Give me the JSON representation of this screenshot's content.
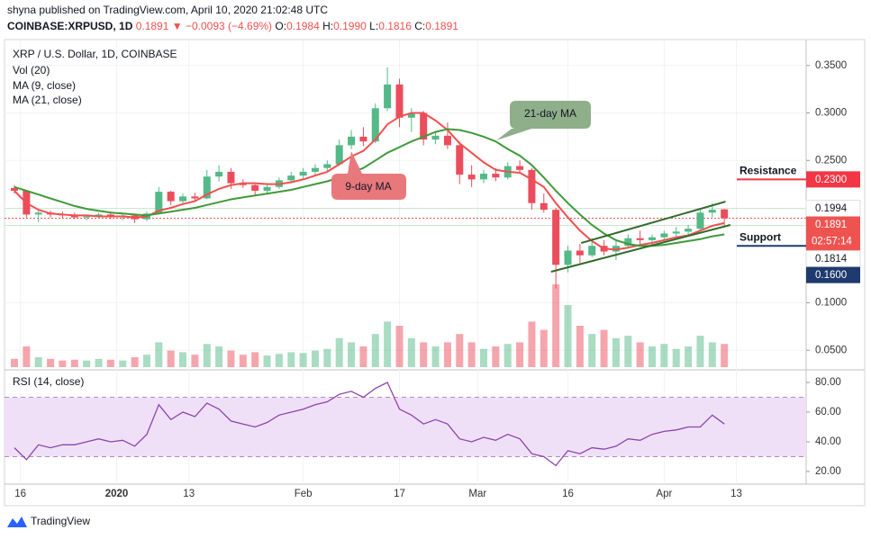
{
  "header": {
    "byline": "shyna published on TradingView.com, April 10, 2020 21:02:48 UTC",
    "symbol": "COINBASE:XRPUSD, 1D",
    "last": "0.1891",
    "arrow": "▼",
    "change": "−0.0093 (−4.69%)",
    "quote": [
      {
        "k": "O:",
        "v": "0.1984"
      },
      {
        "k": "H:",
        "v": "0.1990"
      },
      {
        "k": "L:",
        "v": "0.1816"
      },
      {
        "k": "C:",
        "v": "0.1891"
      }
    ]
  },
  "chart_data": {
    "type": "candlestick",
    "title": "XRP / U.S. Dollar, 1D, COINBASE",
    "up_color": "#53b987",
    "down_color": "#eb4d5c",
    "candles": {
      "open": [
        0.221,
        0.218,
        0.193,
        0.195,
        0.193,
        0.192,
        0.19,
        0.191,
        0.193,
        0.191,
        0.192,
        0.188,
        0.194,
        0.217,
        0.207,
        0.212,
        0.21,
        0.233,
        0.238,
        0.226,
        0.224,
        0.218,
        0.222,
        0.229,
        0.234,
        0.238,
        0.242,
        0.246,
        0.266,
        0.275,
        0.27,
        0.305,
        0.33,
        0.295,
        0.3,
        0.272,
        0.276,
        0.266,
        0.235,
        0.23,
        0.236,
        0.232,
        0.244,
        0.24,
        0.205,
        0.198,
        0.14,
        0.155,
        0.15,
        0.16,
        0.154,
        0.16,
        0.168,
        0.166,
        0.169,
        0.173,
        0.175,
        0.178,
        0.195,
        0.1984
      ],
      "high": [
        0.224,
        0.219,
        0.198,
        0.197,
        0.196,
        0.195,
        0.193,
        0.195,
        0.196,
        0.194,
        0.194,
        0.196,
        0.222,
        0.218,
        0.215,
        0.216,
        0.24,
        0.245,
        0.242,
        0.23,
        0.226,
        0.224,
        0.232,
        0.238,
        0.242,
        0.246,
        0.25,
        0.272,
        0.282,
        0.285,
        0.31,
        0.348,
        0.336,
        0.305,
        0.302,
        0.28,
        0.29,
        0.27,
        0.245,
        0.24,
        0.242,
        0.248,
        0.25,
        0.242,
        0.215,
        0.2,
        0.16,
        0.162,
        0.168,
        0.166,
        0.165,
        0.172,
        0.176,
        0.172,
        0.176,
        0.18,
        0.182,
        0.199,
        0.205,
        0.199
      ],
      "low": [
        0.215,
        0.19,
        0.185,
        0.19,
        0.189,
        0.188,
        0.187,
        0.189,
        0.188,
        0.187,
        0.184,
        0.186,
        0.193,
        0.203,
        0.205,
        0.207,
        0.209,
        0.228,
        0.22,
        0.221,
        0.212,
        0.214,
        0.22,
        0.226,
        0.23,
        0.234,
        0.238,
        0.244,
        0.262,
        0.265,
        0.268,
        0.302,
        0.285,
        0.28,
        0.266,
        0.267,
        0.262,
        0.225,
        0.222,
        0.226,
        0.228,
        0.23,
        0.236,
        0.198,
        0.195,
        0.115,
        0.132,
        0.142,
        0.148,
        0.15,
        0.145,
        0.158,
        0.16,
        0.16,
        0.165,
        0.168,
        0.172,
        0.176,
        0.19,
        0.1816
      ],
      "close": [
        0.218,
        0.193,
        0.195,
        0.193,
        0.192,
        0.19,
        0.191,
        0.193,
        0.191,
        0.192,
        0.188,
        0.194,
        0.217,
        0.207,
        0.212,
        0.21,
        0.233,
        0.238,
        0.226,
        0.224,
        0.218,
        0.222,
        0.229,
        0.234,
        0.238,
        0.242,
        0.246,
        0.266,
        0.275,
        0.27,
        0.305,
        0.33,
        0.295,
        0.3,
        0.272,
        0.276,
        0.266,
        0.235,
        0.23,
        0.236,
        0.232,
        0.244,
        0.24,
        0.205,
        0.198,
        0.14,
        0.155,
        0.15,
        0.16,
        0.154,
        0.16,
        0.168,
        0.166,
        0.169,
        0.173,
        0.175,
        0.178,
        0.195,
        0.198,
        0.1891
      ]
    },
    "volume": {
      "name": "Vol (20)",
      "values": [
        10,
        25,
        12,
        10,
        8,
        9,
        8,
        10,
        9,
        8,
        12,
        15,
        30,
        20,
        18,
        15,
        28,
        25,
        20,
        15,
        18,
        14,
        16,
        18,
        17,
        20,
        22,
        35,
        30,
        25,
        40,
        55,
        50,
        35,
        30,
        25,
        30,
        40,
        30,
        22,
        25,
        28,
        30,
        55,
        45,
        100,
        75,
        50,
        40,
        45,
        35,
        38,
        30,
        25,
        28,
        22,
        25,
        38,
        30,
        28
      ]
    },
    "ma": [
      {
        "name": "MA (9, close)",
        "color": "#f0504f",
        "values": [
          0.218,
          0.205,
          0.198,
          0.194,
          0.193,
          0.192,
          0.192,
          0.191,
          0.191,
          0.191,
          0.19,
          0.191,
          0.197,
          0.2,
          0.204,
          0.207,
          0.214,
          0.22,
          0.224,
          0.226,
          0.226,
          0.225,
          0.225,
          0.227,
          0.23,
          0.234,
          0.238,
          0.246,
          0.254,
          0.26,
          0.272,
          0.288,
          0.296,
          0.3,
          0.3,
          0.292,
          0.282,
          0.268,
          0.258,
          0.248,
          0.24,
          0.238,
          0.237,
          0.23,
          0.222,
          0.205,
          0.19,
          0.176,
          0.165,
          0.157,
          0.156,
          0.158,
          0.161,
          0.163,
          0.166,
          0.169,
          0.171,
          0.176,
          0.181,
          0.184
        ]
      },
      {
        "name": "MA (21, close)",
        "color": "#3f9a3a",
        "values": [
          0.222,
          0.218,
          0.214,
          0.21,
          0.206,
          0.202,
          0.199,
          0.197,
          0.195,
          0.194,
          0.193,
          0.192,
          0.194,
          0.196,
          0.198,
          0.2,
          0.203,
          0.206,
          0.209,
          0.211,
          0.213,
          0.215,
          0.217,
          0.219,
          0.222,
          0.225,
          0.228,
          0.232,
          0.237,
          0.242,
          0.25,
          0.258,
          0.264,
          0.27,
          0.275,
          0.28,
          0.283,
          0.282,
          0.279,
          0.275,
          0.27,
          0.262,
          0.255,
          0.245,
          0.232,
          0.218,
          0.205,
          0.193,
          0.182,
          0.173,
          0.166,
          0.162,
          0.16,
          0.16,
          0.161,
          0.163,
          0.165,
          0.167,
          0.17,
          0.172
        ]
      }
    ],
    "xlim": [
      -0.3,
      65.8
    ],
    "xticks": [
      {
        "value": 0.5,
        "label": "16"
      },
      {
        "value": 8.5,
        "label": "2020"
      },
      {
        "value": 14.5,
        "label": "13"
      },
      {
        "value": 24,
        "label": "Feb"
      },
      {
        "value": 32,
        "label": "17"
      },
      {
        "value": 38.5,
        "label": "Mar"
      },
      {
        "value": 46,
        "label": "16"
      },
      {
        "value": 54,
        "label": "Apr"
      },
      {
        "value": 60,
        "label": "13"
      }
    ],
    "ylim": [
      0.0322,
      0.3735
    ],
    "yticks": [
      {
        "value": 0.35,
        "label": "0.3500"
      },
      {
        "value": 0.3,
        "label": "0.3000"
      },
      {
        "value": 0.25,
        "label": "0.2500"
      },
      {
        "value": 0.1,
        "label": "0.1000"
      },
      {
        "value": 0.05,
        "label": "0.0500"
      }
    ],
    "grid": true,
    "price_labels": [
      {
        "value": 0.23,
        "label": "0.2300",
        "color": "#f23645",
        "text_color": "#ffffff"
      },
      {
        "value": 0.1994,
        "label": "0.1994",
        "color": "#ffffff",
        "text_color": "#131722",
        "line": "#c9e4c9"
      },
      {
        "value": 0.1891,
        "label": "0.1891",
        "color": "#ef5350",
        "text_color": "#ffffff",
        "line": "#ef5350",
        "countdown": "02:57:14"
      },
      {
        "value": 0.1814,
        "label": "0.1814",
        "color": "#ffffff",
        "text_color": "#131722",
        "line": "#c9e4c9"
      },
      {
        "value": 0.16,
        "label": "0.1600",
        "color": "#1e3a6e",
        "text_color": "#ffffff"
      }
    ],
    "levels": [
      {
        "text": "Resistance",
        "value": 0.23,
        "color": "#f23645",
        "text_color": "#1e3a6e"
      },
      {
        "text": "Support",
        "value": 0.16,
        "color": "#1e3a6e",
        "text_color": "#1e3a6e"
      }
    ],
    "trendlines": [
      {
        "color": "#2e6b2a",
        "x": [
          47.1,
          59.1
        ],
        "y": [
          0.163,
          0.2066
        ]
      },
      {
        "color": "#2e6b2a",
        "x": [
          44.6,
          59.5
        ],
        "y": [
          0.1327,
          0.182
        ]
      }
    ],
    "annotations": [
      {
        "text": "21-day MA",
        "color": "#8fae8a"
      },
      {
        "text": "9-day MA",
        "color": "#e8787c"
      }
    ],
    "rsi": {
      "name": "RSI (14, close)",
      "color": "#8e44ad",
      "band_color": "#efe0f7",
      "values": [
        36,
        28,
        38,
        36,
        38,
        38,
        40,
        42,
        40,
        41,
        37,
        45,
        65,
        55,
        60,
        57,
        66,
        62,
        54,
        52,
        50,
        53,
        58,
        60,
        62,
        65,
        67,
        72,
        74,
        70,
        76,
        80,
        62,
        58,
        52,
        55,
        52,
        42,
        40,
        43,
        41,
        45,
        42,
        32,
        30,
        24,
        34,
        32,
        36,
        35,
        37,
        42,
        41,
        45,
        47,
        48,
        50,
        50,
        58,
        52
      ],
      "ylim": [
        13.3,
        87.3
      ],
      "yticks": [
        {
          "value": 80,
          "label": "80.00"
        },
        {
          "value": 60,
          "label": "60.00"
        },
        {
          "value": 40,
          "label": "40.00"
        },
        {
          "value": 20,
          "label": "20.00"
        }
      ],
      "bands": [
        30,
        70
      ]
    }
  },
  "footer": {
    "brand": "TradingView"
  }
}
